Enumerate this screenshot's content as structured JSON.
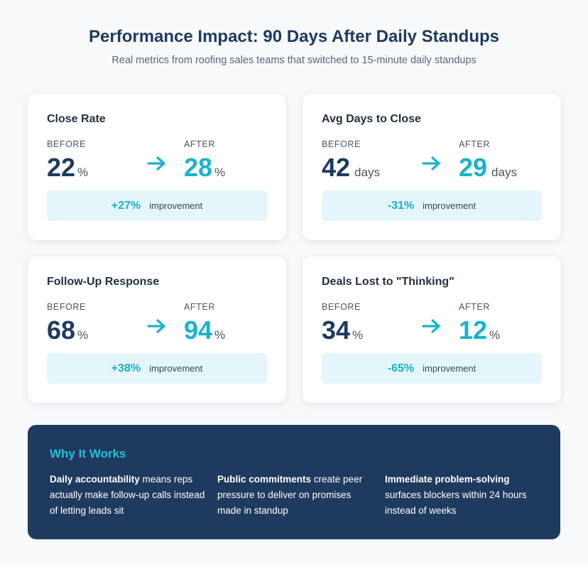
{
  "header": {
    "title": "Performance Impact: 90 Days After Daily Standups",
    "subtitle": "Real metrics from roofing sales teams that switched to 15-minute daily standups"
  },
  "labels": {
    "before": "BEFORE",
    "after": "AFTER",
    "improvement": "improvement"
  },
  "metrics": [
    {
      "title": "Close Rate",
      "before": "22",
      "after": "28",
      "unit": "%",
      "change": "+27%"
    },
    {
      "title": "Avg Days to Close",
      "before": "42",
      "after": "29",
      "unit": "days",
      "change": "-31%"
    },
    {
      "title": "Follow-Up Response",
      "before": "68",
      "after": "94",
      "unit": "%",
      "change": "+38%"
    },
    {
      "title": "Deals Lost to \"Thinking\"",
      "before": "34",
      "after": "12",
      "unit": "%",
      "change": "-65%"
    }
  ],
  "why": {
    "title": "Why It Works",
    "points": [
      {
        "bold": "Daily accountability",
        "text": " means reps actually make follow-up calls instead of letting leads sit"
      },
      {
        "bold": "Public commitments",
        "text": " create peer pressure to deliver on promises made in standup"
      },
      {
        "bold": "Immediate problem-solving",
        "text": " surfaces blockers within 24 hours instead of weeks"
      }
    ]
  },
  "colors": {
    "navy": "#1f3a5f",
    "accent": "#1ab3cc",
    "improvement_bg": "#e4f6f9"
  }
}
